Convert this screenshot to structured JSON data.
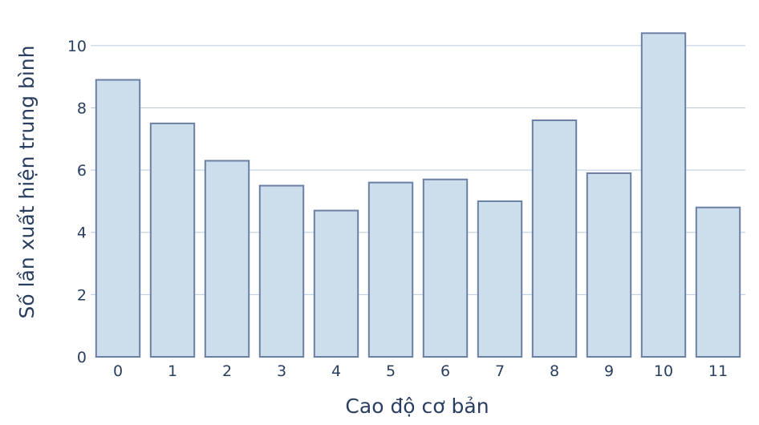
{
  "chart_data": {
    "type": "bar",
    "title": "",
    "xlabel": "Cao độ cơ bản",
    "ylabel": "Số lần xuất hiện trung bình",
    "categories": [
      "0",
      "1",
      "2",
      "3",
      "4",
      "5",
      "6",
      "7",
      "8",
      "9",
      "10",
      "11"
    ],
    "values": [
      8.9,
      7.5,
      6.3,
      5.5,
      4.7,
      5.6,
      5.7,
      5.0,
      7.6,
      5.9,
      10.4,
      4.8
    ],
    "ylim": [
      0,
      10.95
    ],
    "yticks": [
      0,
      2,
      4,
      6,
      8,
      10
    ],
    "grid": "horizontal",
    "legend": "none",
    "colors": {
      "bar_fill": "#ccdeec",
      "bar_stroke": "#6b7fa3",
      "grid": "#b7cbe0",
      "text": "#2a3f5f"
    }
  }
}
